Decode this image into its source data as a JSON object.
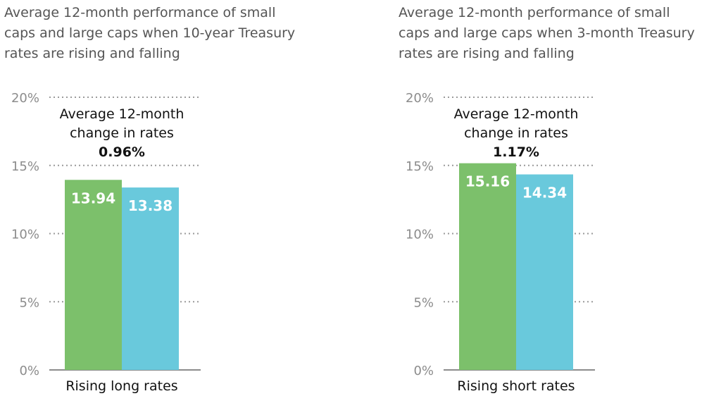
{
  "chart_data": [
    {
      "type": "bar",
      "title": [
        "Average 12-month performance of small",
        "caps and large caps when 10-year Treasury",
        "rates are rising and falling"
      ],
      "categories": [
        "Rising long rates"
      ],
      "series": [
        {
          "values": [
            13.94
          ],
          "color": "#7cc06b"
        },
        {
          "values": [
            13.38
          ],
          "color": "#69c9dc"
        }
      ],
      "value_labels": [
        "13.94",
        "13.38"
      ],
      "annotation": {
        "lines": [
          "Average 12-month",
          "change in rates"
        ],
        "value": "0.96%"
      },
      "ylim": [
        0,
        20
      ],
      "yticks": [
        0,
        5,
        10,
        15,
        20
      ],
      "ytick_labels": [
        "0%",
        "5%",
        "10%",
        "15%",
        "20%"
      ],
      "grid": true
    },
    {
      "type": "bar",
      "title": [
        "Average 12-month performance of small",
        "caps and large caps when 3-month Treasury",
        "rates are rising and falling"
      ],
      "categories": [
        "Rising short rates"
      ],
      "series": [
        {
          "values": [
            15.16
          ],
          "color": "#7cc06b"
        },
        {
          "values": [
            14.34
          ],
          "color": "#69c9dc"
        }
      ],
      "value_labels": [
        "15.16",
        "14.34"
      ],
      "annotation": {
        "lines": [
          "Average 12-month",
          "change in rates"
        ],
        "value": "1.17%"
      },
      "ylim": [
        0,
        20
      ],
      "yticks": [
        0,
        5,
        10,
        15,
        20
      ],
      "ytick_labels": [
        "0%",
        "5%",
        "10%",
        "15%",
        "20%"
      ],
      "grid": true
    }
  ]
}
